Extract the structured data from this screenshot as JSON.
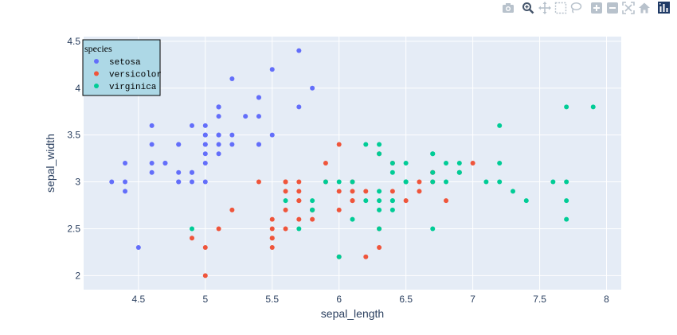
{
  "toolbar": {
    "items": [
      {
        "name": "camera-icon"
      },
      {
        "name": "zoom-icon"
      },
      {
        "name": "pan-icon"
      },
      {
        "name": "box-select-icon"
      },
      {
        "name": "lasso-select-icon"
      },
      {
        "name": "zoom-in-icon"
      },
      {
        "name": "zoom-out-icon"
      },
      {
        "name": "autoscale-icon"
      },
      {
        "name": "reset-axes-icon"
      },
      {
        "name": "plotly-logo-icon"
      }
    ]
  },
  "colors": {
    "plot_bg": "#e5ecf6",
    "grid": "#ffffff",
    "legend_bg": "#add8e6",
    "legend_border": "#000000",
    "text": "#2a3f5f"
  },
  "chart_data": {
    "type": "scatter",
    "title": "",
    "xlabel": "sepal_length",
    "ylabel": "sepal_width",
    "xlim": [
      4.09,
      8.11
    ],
    "ylim": [
      1.85,
      4.55
    ],
    "xticks": [
      4.5,
      5,
      5.5,
      6,
      6.5,
      7,
      7.5,
      8
    ],
    "xtick_labels": [
      "4.5",
      "5",
      "5.5",
      "6",
      "6.5",
      "7",
      "7.5",
      "8"
    ],
    "yticks": [
      2,
      2.5,
      3,
      3.5,
      4,
      4.5
    ],
    "ytick_labels": [
      "2",
      "2.5",
      "3",
      "3.5",
      "4",
      "4.5"
    ],
    "grid": true,
    "legend": {
      "title": "species",
      "placement": "top-left"
    },
    "series": [
      {
        "name": "setosa",
        "color": "#636efa",
        "points": [
          [
            5.1,
            3.5
          ],
          [
            4.9,
            3.0
          ],
          [
            4.7,
            3.2
          ],
          [
            4.6,
            3.1
          ],
          [
            5.0,
            3.6
          ],
          [
            5.4,
            3.9
          ],
          [
            4.6,
            3.4
          ],
          [
            5.0,
            3.4
          ],
          [
            4.4,
            2.9
          ],
          [
            4.9,
            3.1
          ],
          [
            5.4,
            3.7
          ],
          [
            4.8,
            3.4
          ],
          [
            4.8,
            3.0
          ],
          [
            4.3,
            3.0
          ],
          [
            5.8,
            4.0
          ],
          [
            5.7,
            4.4
          ],
          [
            5.4,
            3.9
          ],
          [
            5.1,
            3.5
          ],
          [
            5.7,
            3.8
          ],
          [
            5.1,
            3.8
          ],
          [
            5.4,
            3.4
          ],
          [
            5.1,
            3.7
          ],
          [
            4.6,
            3.6
          ],
          [
            5.1,
            3.3
          ],
          [
            4.8,
            3.4
          ],
          [
            5.0,
            3.0
          ],
          [
            5.0,
            3.4
          ],
          [
            5.2,
            3.5
          ],
          [
            5.2,
            3.4
          ],
          [
            4.7,
            3.2
          ],
          [
            4.8,
            3.1
          ],
          [
            5.4,
            3.4
          ],
          [
            5.2,
            4.1
          ],
          [
            5.5,
            4.2
          ],
          [
            4.9,
            3.1
          ],
          [
            5.0,
            3.2
          ],
          [
            5.5,
            3.5
          ],
          [
            4.9,
            3.6
          ],
          [
            4.4,
            3.0
          ],
          [
            5.1,
            3.4
          ],
          [
            5.0,
            3.5
          ],
          [
            4.5,
            2.3
          ],
          [
            4.4,
            3.2
          ],
          [
            5.0,
            3.5
          ],
          [
            5.1,
            3.8
          ],
          [
            4.8,
            3.0
          ],
          [
            5.1,
            3.8
          ],
          [
            4.6,
            3.2
          ],
          [
            5.3,
            3.7
          ],
          [
            5.0,
            3.3
          ]
        ]
      },
      {
        "name": "versicolor",
        "color": "#ef553b",
        "points": [
          [
            7.0,
            3.2
          ],
          [
            6.4,
            3.2
          ],
          [
            6.9,
            3.1
          ],
          [
            5.5,
            2.3
          ],
          [
            6.5,
            2.8
          ],
          [
            5.7,
            2.8
          ],
          [
            6.3,
            3.3
          ],
          [
            4.9,
            2.4
          ],
          [
            6.6,
            2.9
          ],
          [
            5.2,
            2.7
          ],
          [
            5.0,
            2.0
          ],
          [
            5.9,
            3.0
          ],
          [
            6.0,
            2.2
          ],
          [
            6.1,
            2.9
          ],
          [
            5.6,
            2.9
          ],
          [
            6.7,
            3.1
          ],
          [
            5.6,
            3.0
          ],
          [
            5.8,
            2.7
          ],
          [
            6.2,
            2.2
          ],
          [
            5.6,
            2.5
          ],
          [
            5.9,
            3.2
          ],
          [
            6.1,
            2.8
          ],
          [
            6.3,
            2.5
          ],
          [
            6.1,
            2.8
          ],
          [
            6.4,
            2.9
          ],
          [
            6.6,
            3.0
          ],
          [
            6.8,
            2.8
          ],
          [
            6.7,
            3.0
          ],
          [
            6.0,
            2.9
          ],
          [
            5.7,
            2.6
          ],
          [
            5.5,
            2.4
          ],
          [
            5.5,
            2.4
          ],
          [
            5.8,
            2.7
          ],
          [
            6.0,
            2.7
          ],
          [
            5.4,
            3.0
          ],
          [
            6.0,
            3.4
          ],
          [
            6.7,
            3.1
          ],
          [
            6.3,
            2.3
          ],
          [
            5.6,
            3.0
          ],
          [
            5.5,
            2.5
          ],
          [
            5.5,
            2.6
          ],
          [
            6.1,
            3.0
          ],
          [
            5.8,
            2.6
          ],
          [
            5.0,
            2.3
          ],
          [
            5.6,
            2.7
          ],
          [
            5.7,
            3.0
          ],
          [
            5.7,
            2.9
          ],
          [
            6.2,
            2.9
          ],
          [
            5.1,
            2.5
          ],
          [
            5.7,
            2.8
          ]
        ]
      },
      {
        "name": "virginica",
        "color": "#00cc96",
        "points": [
          [
            6.3,
            3.3
          ],
          [
            5.8,
            2.7
          ],
          [
            7.1,
            3.0
          ],
          [
            6.3,
            2.9
          ],
          [
            6.5,
            3.0
          ],
          [
            7.6,
            3.0
          ],
          [
            4.9,
            2.5
          ],
          [
            7.3,
            2.9
          ],
          [
            6.7,
            2.5
          ],
          [
            7.2,
            3.6
          ],
          [
            6.5,
            3.2
          ],
          [
            6.4,
            2.7
          ],
          [
            6.8,
            3.0
          ],
          [
            5.7,
            2.5
          ],
          [
            5.8,
            2.8
          ],
          [
            6.4,
            3.2
          ],
          [
            6.5,
            3.0
          ],
          [
            7.7,
            3.8
          ],
          [
            7.7,
            2.6
          ],
          [
            6.0,
            2.2
          ],
          [
            6.9,
            3.2
          ],
          [
            5.6,
            2.8
          ],
          [
            7.7,
            2.8
          ],
          [
            6.3,
            2.7
          ],
          [
            6.7,
            3.3
          ],
          [
            7.2,
            3.2
          ],
          [
            6.2,
            2.8
          ],
          [
            6.1,
            3.0
          ],
          [
            6.4,
            2.8
          ],
          [
            7.2,
            3.0
          ],
          [
            7.4,
            2.8
          ],
          [
            7.9,
            3.8
          ],
          [
            6.4,
            2.8
          ],
          [
            6.3,
            2.8
          ],
          [
            6.1,
            2.6
          ],
          [
            7.7,
            3.0
          ],
          [
            6.3,
            3.4
          ],
          [
            6.4,
            3.1
          ],
          [
            6.0,
            3.0
          ],
          [
            6.9,
            3.1
          ],
          [
            6.7,
            3.1
          ],
          [
            6.9,
            3.1
          ],
          [
            5.8,
            2.7
          ],
          [
            6.8,
            3.2
          ],
          [
            6.7,
            3.3
          ],
          [
            6.7,
            3.0
          ],
          [
            6.3,
            2.5
          ],
          [
            6.5,
            3.0
          ],
          [
            6.2,
            3.4
          ],
          [
            5.9,
            3.0
          ]
        ]
      }
    ]
  }
}
